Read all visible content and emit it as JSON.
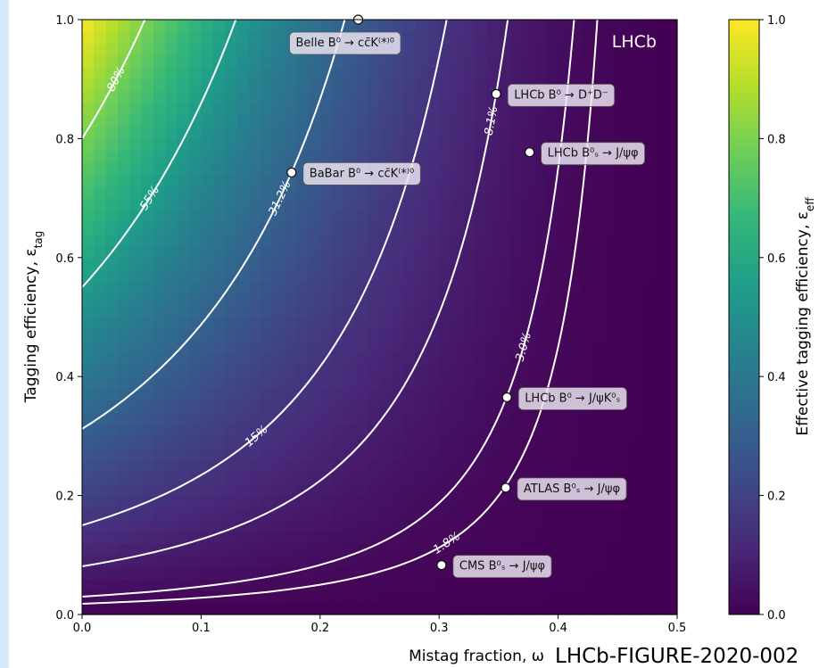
{
  "chart_data": {
    "type": "heatmap",
    "function": "eff = tag * (1 - 2*w)^2",
    "xlabel": "Mistag fraction, ω",
    "ylabel": "Tagging efficiency, ε",
    "ylabel_sub": "tag",
    "xlim": [
      0.0,
      0.5
    ],
    "ylim": [
      0.0,
      1.0
    ],
    "xticks": [
      "0.0",
      "0.1",
      "0.2",
      "0.3",
      "0.4",
      "0.5"
    ],
    "yticks": [
      "0.0",
      "0.2",
      "0.4",
      "0.6",
      "0.8",
      "1.0"
    ],
    "colorbar": {
      "label": "Effective tagging efficiency, ε",
      "label_sub": "eff",
      "range": [
        0.0,
        1.0
      ],
      "ticks": [
        "0.0",
        "0.2",
        "0.4",
        "0.6",
        "0.8",
        "1.0"
      ],
      "colormap": "viridis"
    },
    "contours": [
      {
        "level": 0.8,
        "label": "80%"
      },
      {
        "level": 0.55,
        "label": "55%"
      },
      {
        "level": 0.312,
        "label": "31.2%"
      },
      {
        "level": 0.15,
        "label": "15%"
      },
      {
        "level": 0.081,
        "label": "8.1%"
      },
      {
        "level": 0.03,
        "label": "3.0%"
      },
      {
        "level": 0.018,
        "label": "1.8%"
      }
    ],
    "points": [
      {
        "label": "Belle B⁰ → cc̄K⁽*⁾⁰",
        "x": 0.232,
        "y": 1.0
      },
      {
        "label": "LHCb B⁰ → D⁺D⁻",
        "x": 0.348,
        "y": 0.875
      },
      {
        "label": "LHCb B⁰ₛ → J/ψφ",
        "x": 0.376,
        "y": 0.777
      },
      {
        "label": "BaBar B⁰ → cc̄K⁽*⁾⁰",
        "x": 0.176,
        "y": 0.743
      },
      {
        "label": "LHCb B⁰ → J/ψK⁰ₛ",
        "x": 0.357,
        "y": 0.365
      },
      {
        "label": "ATLAS B⁰ₛ → J/ψφ",
        "x": 0.356,
        "y": 0.213
      },
      {
        "label": "CMS B⁰ₛ → J/ψφ",
        "x": 0.302,
        "y": 0.083
      }
    ],
    "experiment_label": "LHCb"
  },
  "footer": "LHCb-FIGURE-2020-002",
  "colors": {
    "viridis": [
      "#440154",
      "#482878",
      "#3e4989",
      "#31688e",
      "#26828e",
      "#1f9e89",
      "#35b779",
      "#6ece58",
      "#b5de2b",
      "#fde725"
    ],
    "contour": "#ffffff",
    "marker": "#ffffff",
    "label_box": "#e8e2ee",
    "background": "#d8e9f7"
  }
}
